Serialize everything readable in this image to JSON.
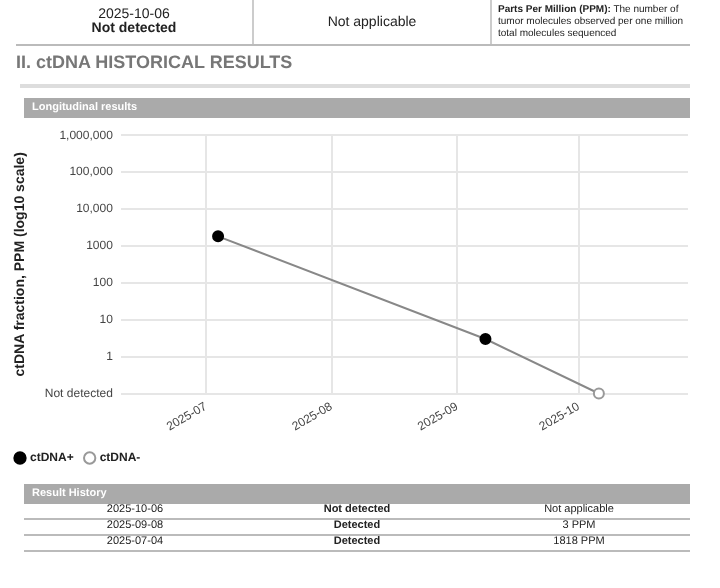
{
  "chart_data": {
    "type": "line",
    "title": "II. ctDNA HISTORICAL RESULTS",
    "subtitle": "Longitudinal results",
    "ylabel": "ctDNA fraction, PPM (log10 scale)",
    "series": [
      {
        "color": "#888888",
        "marker": "none",
        "x": [
          "2025-07-04",
          "2025-09-08",
          "2025-10-06"
        ],
        "values": [
          1818,
          3,
          0.1
        ]
      },
      {
        "type": "scatter",
        "name": "ctDNA+",
        "color": "#000000",
        "marker": "circle",
        "x": [
          "2025-07-04",
          "2025-09-08"
        ],
        "values": [
          1818,
          3
        ]
      },
      {
        "type": "scatter",
        "name": "ctDNA-",
        "color": "#999999",
        "marker": "circle",
        "x": [
          "2025-10-06"
        ],
        "values": [
          0.1
        ]
      }
    ],
    "xlim": [
      "2025-06-10",
      "2025-10-28"
    ],
    "xticks": [
      "2025-07",
      "2025-08",
      "2025-09",
      "2025-10"
    ],
    "ylim": [
      0.1,
      1000000
    ],
    "yticks": [
      {
        "value": 0.1,
        "label": "Not detected"
      },
      1,
      10,
      100,
      1000,
      {
        "value": 10000,
        "label": "10,000"
      },
      {
        "value": 100000,
        "label": "100,000"
      },
      {
        "value": 1000000,
        "label": "1,000,000"
      }
    ],
    "log": "y",
    "grid": true,
    "legend": "bottom left",
    "annotations": [
      "2025-10-06",
      "Not detected",
      "Not applicable",
      "Parts Per Million (PPM):",
      "The number of tumor molecules observed per one million total molecules sequenced",
      "Result History",
      "2025-10-06",
      "Not detected",
      "Not applicable",
      "2025-09-08",
      "Detected",
      "3 PPM",
      "2025-07-04",
      "Detected",
      "1818 PPM"
    ]
  }
}
